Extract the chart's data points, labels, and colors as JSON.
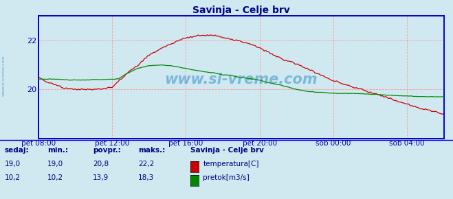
{
  "title": "Savinja - Celje brv",
  "title_color": "#000080",
  "bg_color": "#d0e8f0",
  "plot_bg_color": "#d0e8f0",
  "border_color": "#0000cc",
  "grid_color": "#ff9999",
  "temp_color": "#cc0000",
  "flow_color": "#008800",
  "axis_label_color": "#0000aa",
  "watermark_color": "#4499cc",
  "watermark_text": "www.si-vreme.com",
  "side_label": "www.si-vreme.com",
  "x_tick_labels": [
    "pet 08:00",
    "pet 12:00",
    "pet 16:00",
    "pet 20:00",
    "sob 00:00",
    "sob 04:00"
  ],
  "x_tick_positions": [
    0,
    48,
    96,
    144,
    192,
    240
  ],
  "total_points": 265,
  "temp_ylim": [
    18.0,
    23.0
  ],
  "temp_yticks": [
    20,
    22
  ],
  "flow_ylim": [
    0,
    30
  ],
  "flow_yticks": [],
  "legend_title": "Savinja - Celje brv",
  "legend_items": [
    {
      "label": "temperatura[C]",
      "color": "#cc0000"
    },
    {
      "label": "pretok[m3/s]",
      "color": "#008800"
    }
  ],
  "table_headers": [
    "sedaj:",
    "min.:",
    "povpr.:",
    "maks.:"
  ],
  "table_row1": [
    "19,0",
    "19,0",
    "20,8",
    "22,2"
  ],
  "table_row2": [
    "10,2",
    "10,2",
    "13,9",
    "18,3"
  ],
  "table_color": "#000080"
}
